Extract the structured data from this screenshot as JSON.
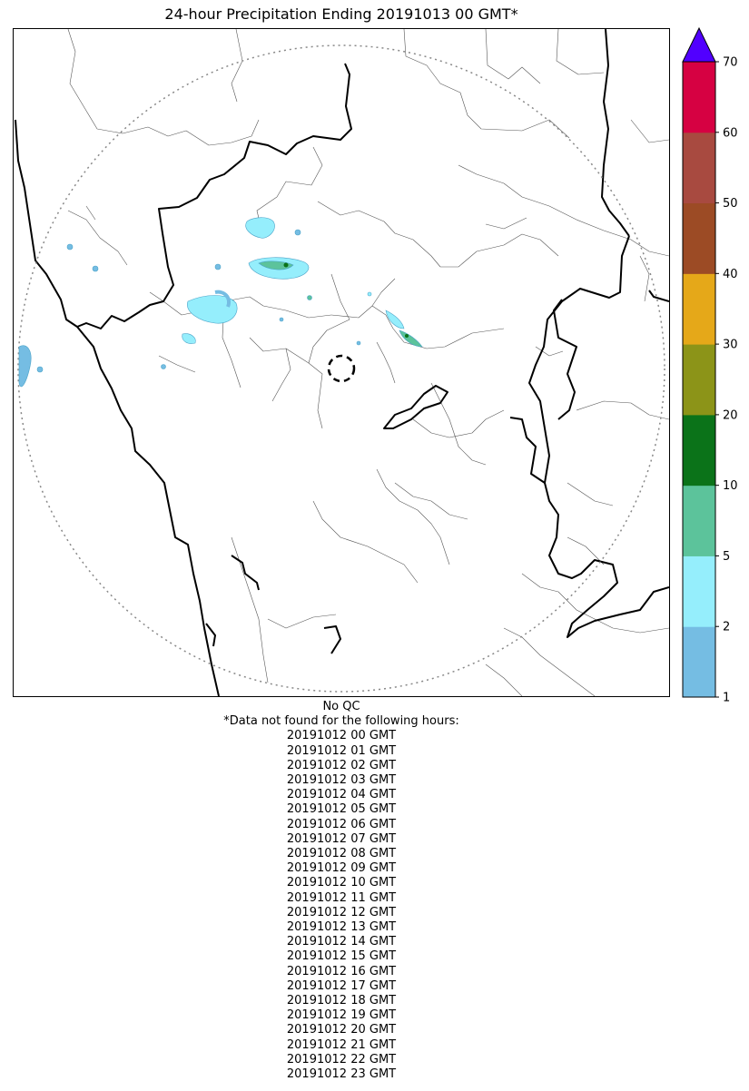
{
  "title": "24-hour Precipitation Ending 20191013 00 GMT*",
  "map": {
    "features": [
      "coastline",
      "state-boundaries",
      "district-boundaries",
      "radar-range-ring",
      "radar-site-marker",
      "precipitation-contours"
    ]
  },
  "colorbar": {
    "ticks": [
      "1",
      "2",
      "5",
      "10",
      "20",
      "30",
      "40",
      "50",
      "60",
      "70"
    ],
    "bins": [
      {
        "from": 1,
        "to": 2,
        "color": "#75bde3"
      },
      {
        "from": 2,
        "to": 5,
        "color": "#95eefc"
      },
      {
        "from": 5,
        "to": 10,
        "color": "#5cc39b"
      },
      {
        "from": 10,
        "to": 20,
        "color": "#0b7319"
      },
      {
        "from": 20,
        "to": 30,
        "color": "#8c9418"
      },
      {
        "from": 30,
        "to": 40,
        "color": "#e5a819"
      },
      {
        "from": 40,
        "to": 50,
        "color": "#9c4b25"
      },
      {
        "from": 50,
        "to": 60,
        "color": "#a84a40"
      },
      {
        "from": 60,
        "to": 70,
        "color": "#d60142"
      }
    ],
    "extend_color": "#5100ff",
    "extends": "max"
  },
  "footer": {
    "qc": "No QC",
    "note": "*Data not found for the following hours:",
    "missing_hours": [
      "20191012 00 GMT",
      "20191012 01 GMT",
      "20191012 02 GMT",
      "20191012 03 GMT",
      "20191012 04 GMT",
      "20191012 05 GMT",
      "20191012 06 GMT",
      "20191012 07 GMT",
      "20191012 08 GMT",
      "20191012 09 GMT",
      "20191012 10 GMT",
      "20191012 11 GMT",
      "20191012 12 GMT",
      "20191012 13 GMT",
      "20191012 14 GMT",
      "20191012 15 GMT",
      "20191012 16 GMT",
      "20191012 17 GMT",
      "20191012 18 GMT",
      "20191012 19 GMT",
      "20191012 20 GMT",
      "20191012 21 GMT",
      "20191012 22 GMT",
      "20191012 23 GMT"
    ]
  }
}
